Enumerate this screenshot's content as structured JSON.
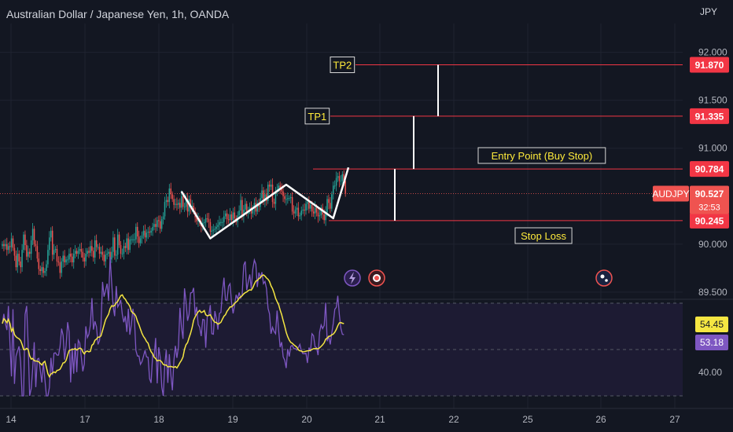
{
  "header": {
    "title": "Australian Dollar / Japanese Yen, 1h, OANDA",
    "currency": "JPY"
  },
  "chart_data": {
    "type": "candlestick",
    "symbol": "AUDJPY",
    "price_axis": {
      "ylim": [
        89.45,
        92.3
      ],
      "ticks": [
        "92.000",
        "91.500",
        "91.000",
        "90.000",
        "89.500"
      ]
    },
    "x_axis": {
      "tick_labels": [
        "14",
        "17",
        "18",
        "19",
        "20",
        "21",
        "22",
        "25",
        "26",
        "27"
      ]
    },
    "levels": [
      {
        "label": "TP2",
        "value": 91.87,
        "price_label": "91.870",
        "color": "#f23645"
      },
      {
        "label": "TP1",
        "value": 91.335,
        "price_label": "91.335",
        "color": "#f23645"
      },
      {
        "label": "Entry Point (Buy Stop)",
        "value": 90.784,
        "price_label": "90.784",
        "color": "#f23645"
      },
      {
        "label": "Stop Loss",
        "value": 90.245,
        "price_label": "90.245",
        "color": "#f23645"
      }
    ],
    "current_price": {
      "label": "AUDJPY",
      "value": 90.527,
      "price_label": "90.527",
      "countdown": "32:53"
    },
    "pattern_path": [
      {
        "bar": 118,
        "price": 90.55
      },
      {
        "bar": 137,
        "price": 90.06
      },
      {
        "bar": 187,
        "price": 90.62
      },
      {
        "bar": 218,
        "price": 90.27
      },
      {
        "bar": 228,
        "price": 90.8
      }
    ],
    "series_close": [
      90.0,
      89.98,
      90.0,
      89.94,
      89.98,
      89.97,
      90.06,
      89.96,
      89.88,
      89.76,
      89.9,
      89.82,
      89.76,
      89.94,
      90.1,
      89.99,
      89.87,
      89.92,
      89.9,
      90.04,
      90.16,
      90.0,
      89.98,
      89.85,
      89.74,
      89.72,
      89.76,
      89.7,
      89.72,
      89.79,
      89.94,
      90.07,
      90.14,
      89.89,
      89.94,
      89.95,
      89.82,
      89.81,
      89.7,
      89.82,
      89.88,
      89.81,
      89.84,
      89.84,
      89.9,
      89.87,
      89.81,
      89.9,
      89.93,
      89.9,
      89.93,
      89.95,
      89.92,
      89.86,
      89.82,
      89.9,
      89.93,
      89.91,
      89.98,
      89.93,
      89.86,
      90.04,
      89.97,
      89.97,
      89.9,
      89.92,
      89.89,
      89.82,
      89.89,
      89.9,
      89.92,
      89.84,
      89.92,
      90.07,
      89.88,
      89.89,
      90.1,
      89.99,
      89.9,
      89.9,
      89.98,
      89.96,
      90.06,
      89.94,
      90.05,
      90.05,
      90.05,
      90.05,
      90.18,
      90.08,
      90.01,
      90.06,
      90.09,
      90.14,
      90.07,
      90.12,
      90.13,
      90.12,
      90.14,
      90.18,
      90.21,
      90.18,
      90.25,
      90.24,
      90.16,
      90.26,
      90.29,
      90.44,
      90.46,
      90.44,
      90.58,
      90.52,
      90.47,
      90.41,
      90.42,
      90.41,
      90.43,
      90.38,
      90.5,
      90.39,
      90.39,
      90.47,
      90.34,
      90.47,
      90.38,
      90.4,
      90.34,
      90.28,
      90.24,
      90.26,
      90.23,
      90.19,
      90.22,
      90.23,
      90.27,
      90.26,
      90.23,
      90.13,
      90.14,
      90.15,
      90.16,
      90.18,
      90.2,
      90.23,
      90.23,
      90.23,
      90.29,
      90.32,
      90.26,
      90.25,
      90.31,
      90.25,
      90.33,
      90.27,
      90.23,
      90.3,
      90.35,
      90.46,
      90.29,
      90.36,
      90.42,
      90.32,
      90.35,
      90.38,
      90.32,
      90.37,
      90.43,
      90.34,
      90.43,
      90.39,
      90.48,
      90.56,
      90.45,
      90.52,
      90.45,
      90.62,
      90.6,
      90.62,
      90.44,
      90.42,
      90.55,
      90.57,
      90.61,
      90.58,
      90.55,
      90.5,
      90.47,
      90.47,
      90.48,
      90.48,
      90.49,
      90.34,
      90.32,
      90.36,
      90.38,
      90.29,
      90.3,
      90.35,
      90.36,
      90.35,
      90.42,
      90.44,
      90.37,
      90.41,
      90.34,
      90.32,
      90.38,
      90.33,
      90.29,
      90.3,
      90.38,
      90.31,
      90.25,
      90.33,
      90.47,
      90.43,
      90.37,
      90.52,
      90.61,
      90.61,
      90.69,
      90.71,
      90.66,
      90.66,
      90.73,
      90.66,
      90.53
    ],
    "rsi": {
      "values": {
        "rsi": "53.18",
        "ma": "54.45"
      },
      "levels": [
        "40.00"
      ],
      "rsi_series": [
        55.6,
        57.7,
        55.6,
        54.2,
        59.4,
        51.1,
        44.2,
        58.7,
        42.6,
        48.6,
        49.7,
        50.7,
        47.3,
        40.0,
        40.0,
        57.6,
        59.4,
        51.0,
        40.0,
        41.6,
        45.9,
        51.6,
        41.9,
        47.9,
        48.1,
        45.4,
        42.9,
        47.2,
        43.7,
        40.0,
        40.0,
        41.8,
        48.2,
        44.5,
        49.2,
        49.3,
        48.8,
        48.8,
        50.6,
        54.5,
        53.1,
        47.8,
        50.9,
        55.9,
        53.8,
        42.9,
        50.3,
        44.8,
        51.3,
        45.1,
        52.0,
        51.4,
        48.3,
        45.3,
        46.9,
        55.0,
        52.6,
        53.3,
        55.3,
        61.1,
        54.3,
        56.1,
        54.9,
        51.1,
        51.9,
        55.3,
        64.6,
        61.4,
        62.7,
        64.2,
        60.5,
        70.0,
        64.3,
        59.2,
        57.2,
        63.7,
        59.2,
        59.8,
        60.7,
        57.6,
        55.9,
        57.2,
        53.8,
        58.8,
        53.2,
        55.3,
        58.8,
        56.6,
        49.8,
        48.6,
        48.6,
        46.8,
        47.4,
        48.6,
        49.8,
        48.4,
        48.3,
        43.7,
        42.8,
        48.9,
        48.5,
        52.5,
        42.7,
        50.5,
        48.3,
        41.9,
        40.0,
        46.7,
        49.9,
        42.8,
        49.0,
        44.6,
        41.2,
        47.6,
        50.8,
        48.2,
        50.6,
        59.0,
        54.9,
        52.3,
        63.2,
        60.4,
        56.2,
        57.6,
        62.2,
        62.3,
        63.3,
        57.4,
        59.2,
        55.4,
        54.8,
        52.9,
        56.5,
        56.4,
        50.4,
        57.3,
        57.4,
        59.6,
        53.4,
        53.3,
        58.3,
        56.7,
        54.3,
        57.8,
        58.0,
        62.4,
        65.5,
        60.7,
        60.6,
        63.7,
        64.2,
        60.1,
        57.8,
        59.6,
        61.8,
        60.9,
        62.3,
        61.1,
        61.8,
        68.2,
        69.0,
        62.8,
        64.6,
        66.2,
        63.1,
        67.3,
        69.3,
        68.4,
        63.5,
        66.6,
        65.5,
        66.7,
        64.2,
        64.7,
        63.2,
        58.9,
        57.7,
        53.4,
        54.8,
        53.9,
        53.4,
        58.4,
        54.1,
        50.5,
        51.6,
        48.4,
        47.7,
        46.0,
        50.1,
        48.5,
        50.7,
        50.9,
        50.2,
        50.2,
        49.9,
        50.4,
        51.1,
        49.7,
        49.1,
        49.1,
        49.2,
        47.1,
        50.4,
        49.6,
        53.4,
        53.0,
        50.6,
        50.4,
        48.8,
        53.8,
        55.3,
        54.5,
        55.2,
        60.1,
        51.8,
        52.9,
        51.1,
        53.5,
        55.6,
        58.7,
        59.1,
        61.6,
        57.5,
        54.6,
        53.3,
        53.2
      ]
    }
  },
  "colors": {
    "background": "#131722",
    "grid": "#1f2330",
    "up": "#26a69a",
    "down": "#ef5350",
    "level_line": "#f23645",
    "annotation_border": "#d8d8d8",
    "annotation_text": "#ffeb3b",
    "rsi_line": "#7e57c2",
    "rsi_ma": "#f5e642",
    "rsi_band": "#1d1b33"
  }
}
